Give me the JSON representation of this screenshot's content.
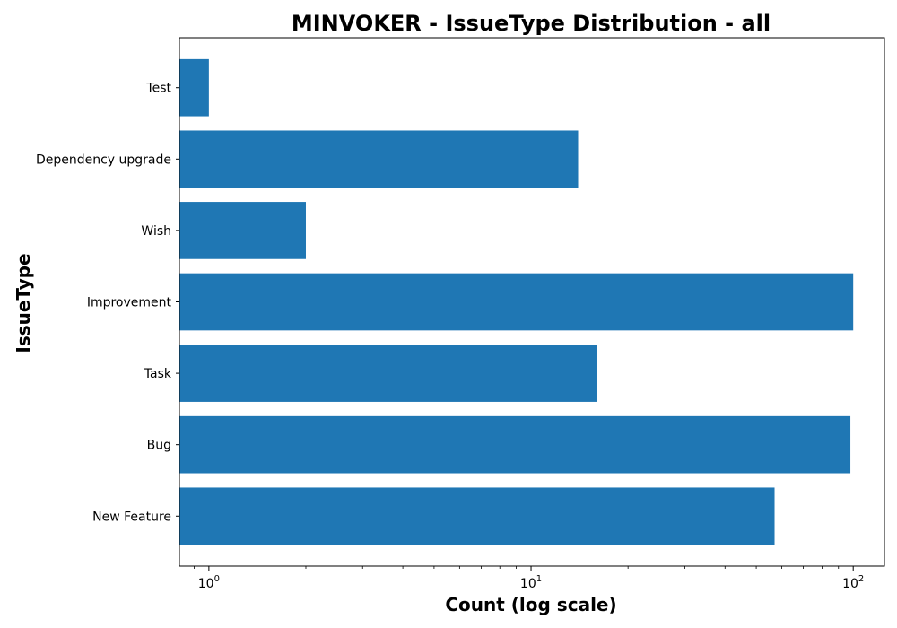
{
  "chart_data": {
    "type": "bar",
    "orientation": "horizontal",
    "title": "MINVOKER - IssueType Distribution - all",
    "xlabel": "Count (log scale)",
    "ylabel": "IssueType",
    "x_scale": "log",
    "xlim": [
      0.81,
      125
    ],
    "x_ticks": [
      {
        "value": 1,
        "base": "10",
        "exp": "0"
      },
      {
        "value": 10,
        "base": "10",
        "exp": "1"
      },
      {
        "value": 100,
        "base": "10",
        "exp": "2"
      }
    ],
    "categories": [
      "New Feature",
      "Bug",
      "Task",
      "Improvement",
      "Wish",
      "Dependency upgrade",
      "Test"
    ],
    "values": [
      57,
      98,
      16,
      100,
      2,
      14,
      1
    ],
    "bar_color": "#1f77b4",
    "grid": false,
    "legend": "none"
  }
}
